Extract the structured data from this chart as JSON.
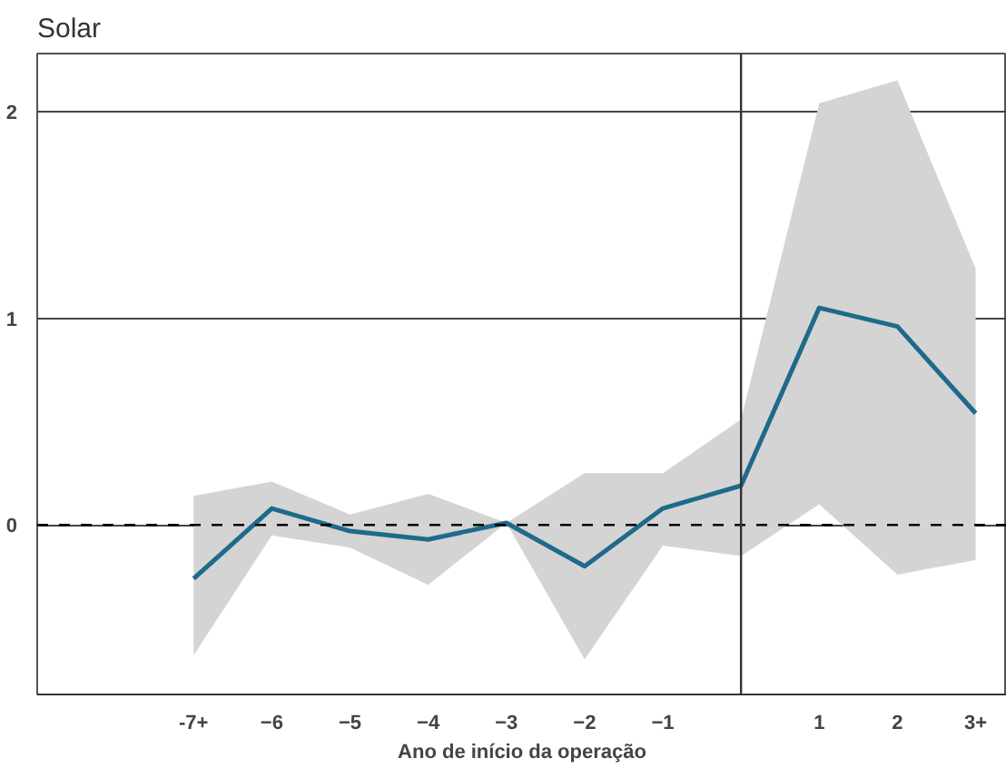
{
  "chart_data": {
    "type": "line",
    "title": "Solar",
    "xlabel": "Ano de início da operação",
    "x": [
      -7,
      -6,
      -5,
      -4,
      -3,
      -2,
      -1,
      0,
      1,
      2,
      3
    ],
    "series": [
      {
        "color": "#1f6a8a",
        "values": [
          -0.26,
          0.08,
          -0.03,
          -0.07,
          0.01,
          -0.2,
          0.08,
          0.19,
          1.05,
          0.96,
          0.54
        ],
        "lower": [
          -0.63,
          -0.05,
          -0.11,
          -0.29,
          0.01,
          -0.65,
          -0.1,
          -0.15,
          0.1,
          -0.24,
          -0.17
        ],
        "upper": [
          0.14,
          0.21,
          0.05,
          0.15,
          0.01,
          0.25,
          0.25,
          0.51,
          2.04,
          2.15,
          1.24
        ]
      }
    ],
    "xlim": [
      -9,
      3.4
    ],
    "ylim": [
      -0.82,
      2.28
    ],
    "xticks": [
      {
        "value": -7,
        "label": "-7+"
      },
      -6,
      -5,
      -4,
      -3,
      -2,
      -1,
      1,
      2,
      {
        "value": 3,
        "label": "3+"
      }
    ],
    "yticks": [
      0,
      1,
      2
    ],
    "grid": "y",
    "marker": "none",
    "line_style": "solid",
    "ref_lines": [
      {
        "axis": "y",
        "value": 0,
        "label": null,
        "line_style": "dashed",
        "color": "#000000"
      },
      {
        "axis": "x",
        "value": 0,
        "label": null,
        "line_style": "solid",
        "color": "#333333"
      }
    ]
  }
}
